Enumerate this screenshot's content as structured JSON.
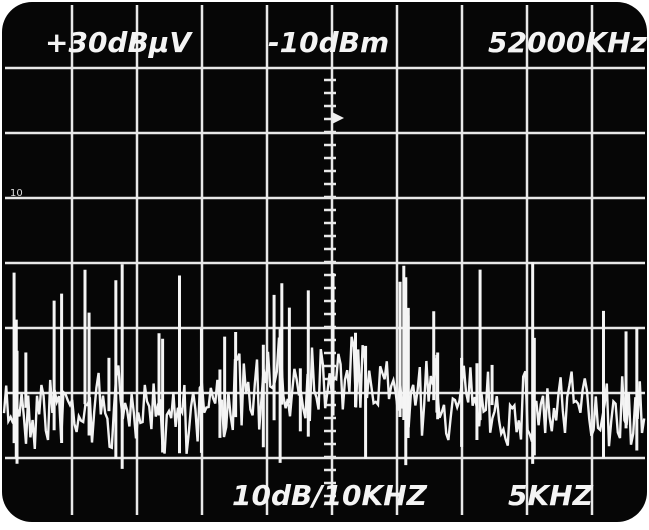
{
  "screen": {
    "top_left": "+30dBμV",
    "top_center": "-10dBm",
    "top_right": "52000KHz",
    "left_marker": "10",
    "bottom_center": "10dB/10KHZ",
    "bottom_right": "5KHZ"
  }
}
